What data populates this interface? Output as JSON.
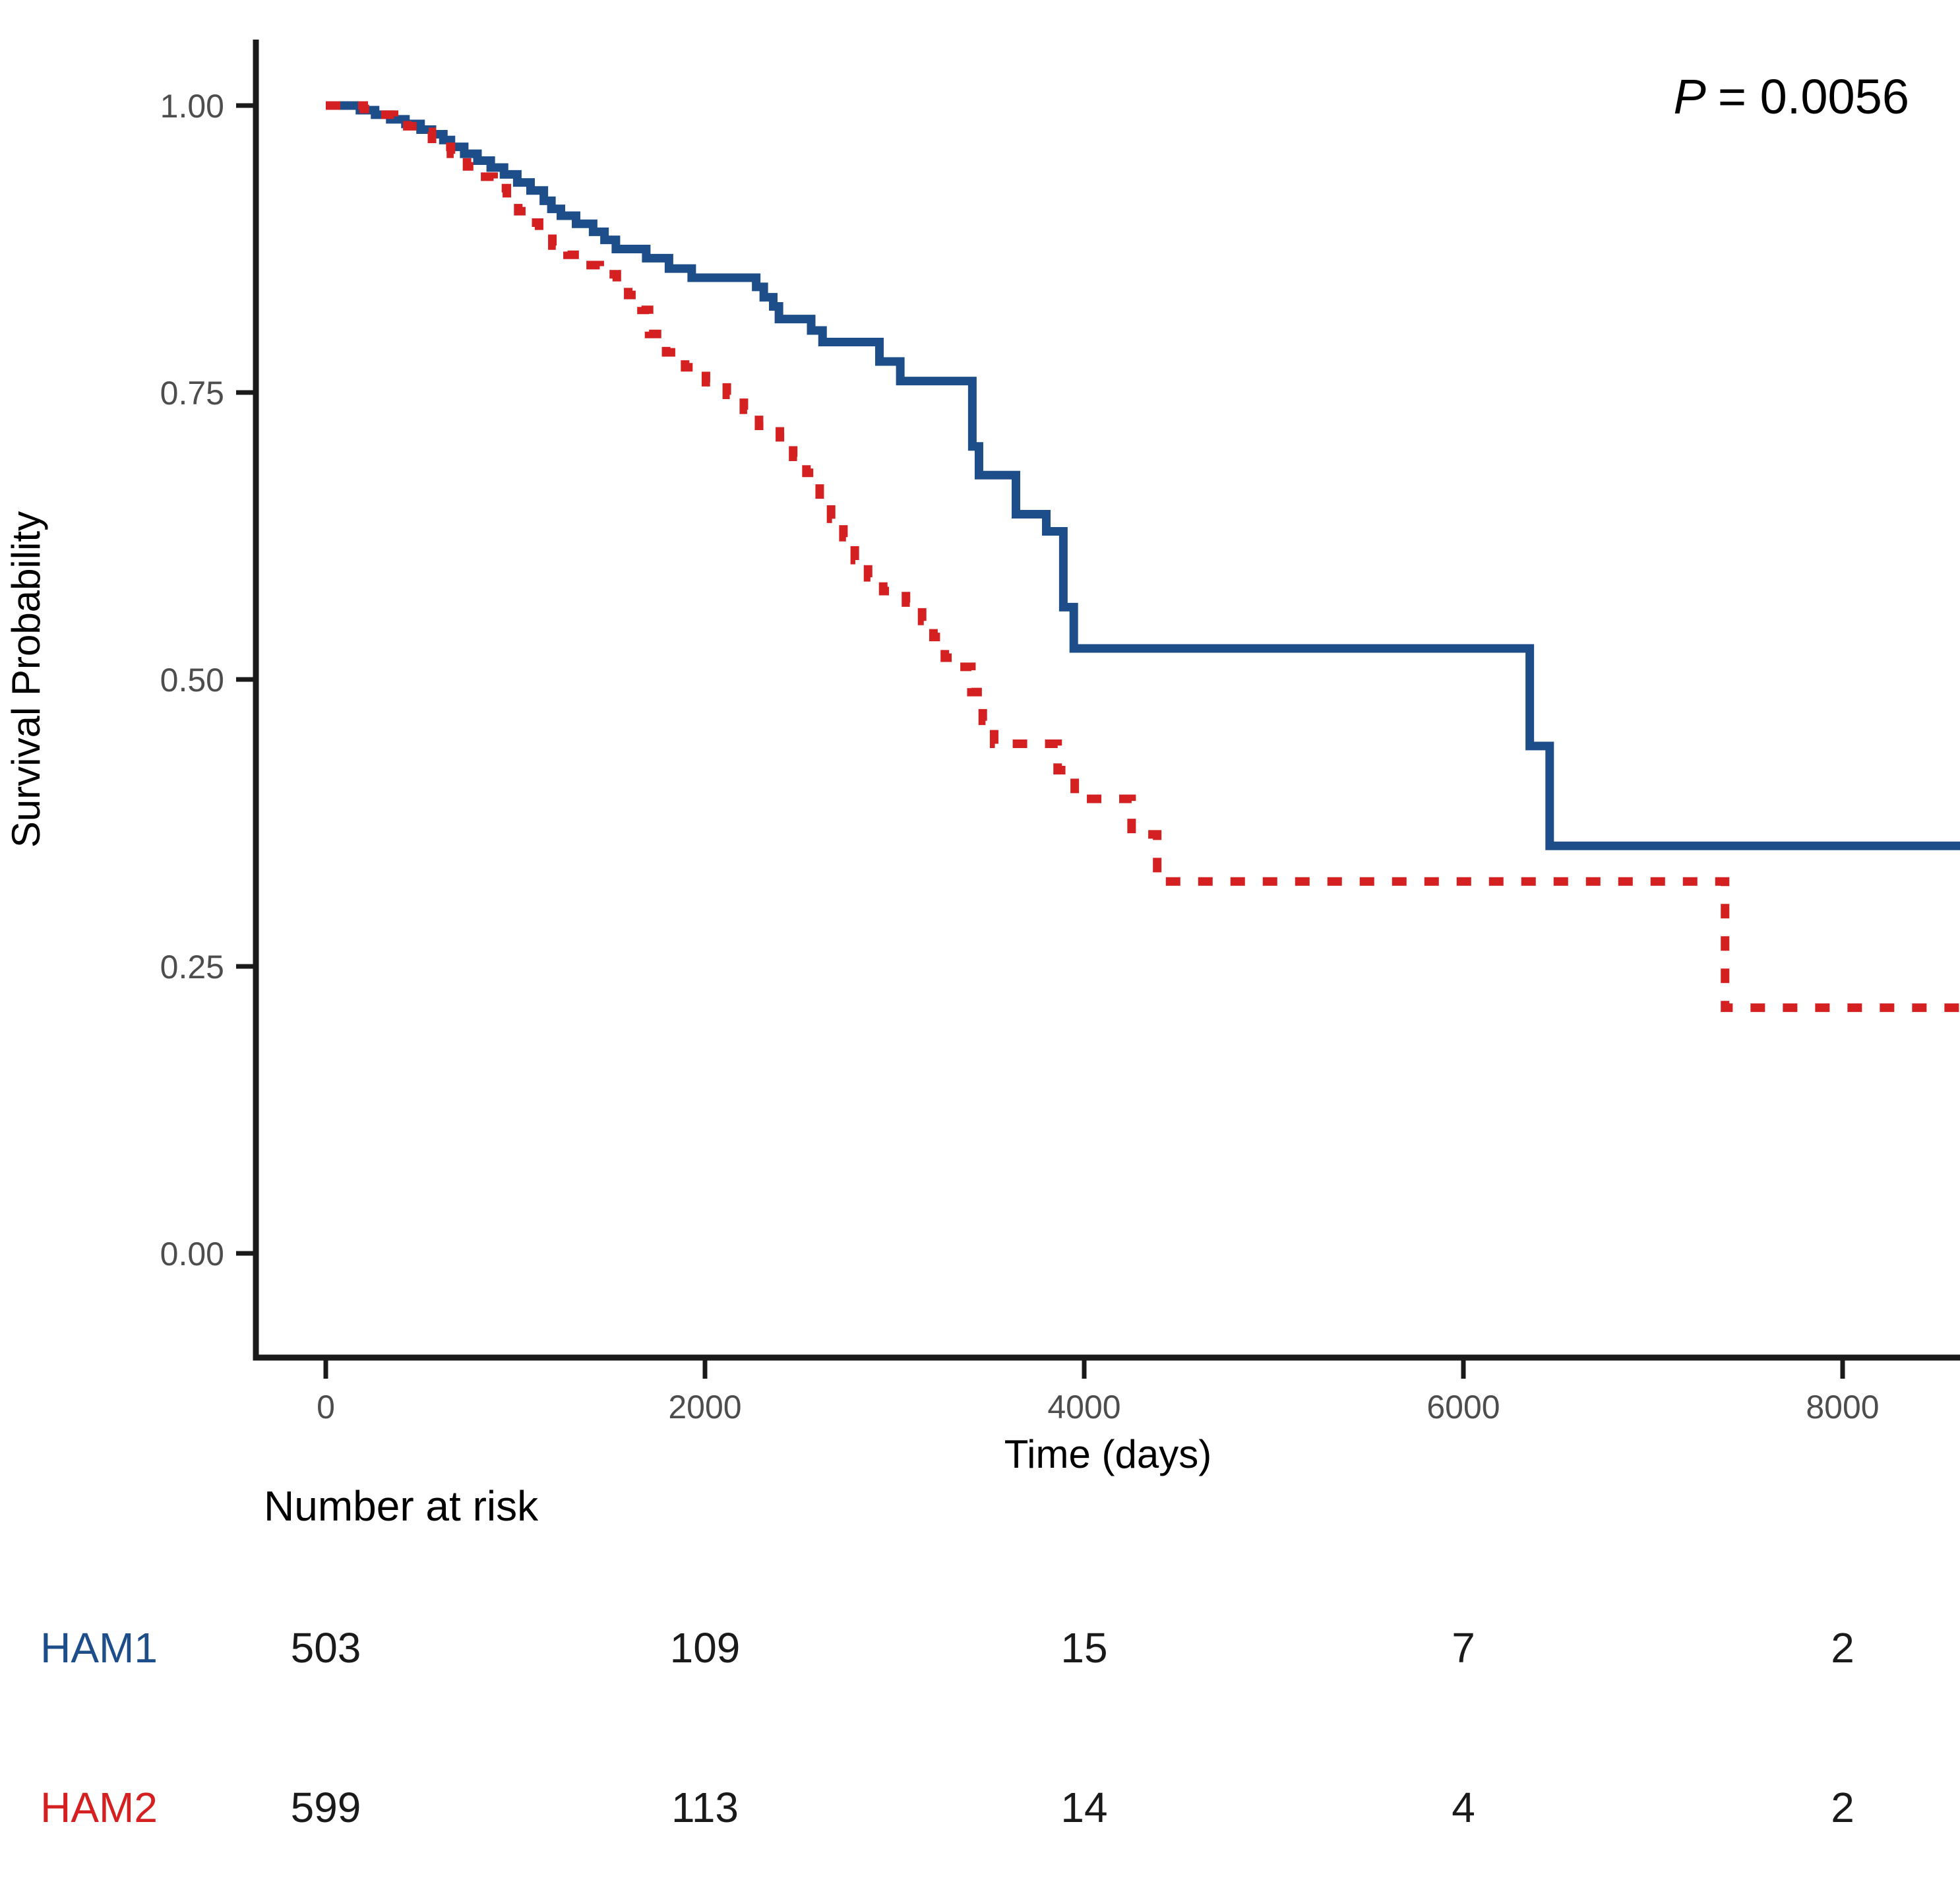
{
  "chart_data": {
    "type": "line",
    "subtype": "kaplan-meier-step",
    "title": "",
    "xlabel": "Time (days)",
    "ylabel": "Survival Probability",
    "xlim": [
      -350,
      8620
    ],
    "ylim": [
      -0.04,
      1.06
    ],
    "grid": "off",
    "legend_position": "none",
    "x_ticks": [
      0,
      2000,
      4000,
      6000,
      8000
    ],
    "y_ticks": [
      0,
      0.25,
      0.5,
      0.75,
      1
    ],
    "y_tick_labels": [
      "0.00",
      "0.25",
      "0.50",
      "0.75",
      "1.00"
    ],
    "annotation": {
      "p_label": "P",
      "p_rest": "= 0.0056"
    },
    "colors": {
      "ham1": "#1d4e89",
      "ham2": "#d42020",
      "axis": "#1a1a1a",
      "tick_text": "#4d4d4d"
    },
    "series": [
      {
        "name": "HAM1",
        "color": "#1d4e89",
        "style": "solid",
        "points": [
          [
            0,
            1.0
          ],
          [
            180,
            0.996
          ],
          [
            260,
            0.992
          ],
          [
            340,
            0.988
          ],
          [
            420,
            0.984
          ],
          [
            500,
            0.979
          ],
          [
            560,
            0.975
          ],
          [
            620,
            0.97
          ],
          [
            660,
            0.964
          ],
          [
            730,
            0.958
          ],
          [
            800,
            0.952
          ],
          [
            870,
            0.946
          ],
          [
            940,
            0.94
          ],
          [
            1010,
            0.933
          ],
          [
            1080,
            0.926
          ],
          [
            1150,
            0.917
          ],
          [
            1190,
            0.91
          ],
          [
            1240,
            0.904
          ],
          [
            1320,
            0.897
          ],
          [
            1410,
            0.89
          ],
          [
            1470,
            0.883
          ],
          [
            1530,
            0.875
          ],
          [
            1690,
            0.867
          ],
          [
            1810,
            0.858
          ],
          [
            1930,
            0.85
          ],
          [
            2270,
            0.842
          ],
          [
            2310,
            0.833
          ],
          [
            2360,
            0.825
          ],
          [
            2390,
            0.814
          ],
          [
            2560,
            0.804
          ],
          [
            2620,
            0.794
          ],
          [
            2920,
            0.777
          ],
          [
            3030,
            0.76
          ],
          [
            3410,
            0.703
          ],
          [
            3445,
            0.678
          ],
          [
            3640,
            0.644
          ],
          [
            3800,
            0.629
          ],
          [
            3890,
            0.563
          ],
          [
            3945,
            0.527
          ],
          [
            6350,
            0.442
          ],
          [
            6455,
            0.355
          ],
          [
            9000,
            0.355
          ]
        ]
      },
      {
        "name": "HAM2",
        "color": "#d42020",
        "style": "dashed",
        "points": [
          [
            0,
            1.0
          ],
          [
            200,
            0.997
          ],
          [
            290,
            0.992
          ],
          [
            360,
            0.987
          ],
          [
            430,
            0.982
          ],
          [
            500,
            0.977
          ],
          [
            560,
            0.971
          ],
          [
            625,
            0.964
          ],
          [
            660,
            0.958
          ],
          [
            745,
            0.947
          ],
          [
            815,
            0.938
          ],
          [
            885,
            0.928
          ],
          [
            955,
            0.918
          ],
          [
            1015,
            0.908
          ],
          [
            1065,
            0.898
          ],
          [
            1125,
            0.888
          ],
          [
            1195,
            0.878
          ],
          [
            1275,
            0.87
          ],
          [
            1345,
            0.861
          ],
          [
            1445,
            0.853
          ],
          [
            1535,
            0.844
          ],
          [
            1595,
            0.835
          ],
          [
            1665,
            0.822
          ],
          [
            1705,
            0.801
          ],
          [
            1795,
            0.785
          ],
          [
            1895,
            0.772
          ],
          [
            2005,
            0.759
          ],
          [
            2115,
            0.748
          ],
          [
            2205,
            0.735
          ],
          [
            2285,
            0.721
          ],
          [
            2395,
            0.711
          ],
          [
            2465,
            0.694
          ],
          [
            2535,
            0.68
          ],
          [
            2605,
            0.655
          ],
          [
            2665,
            0.64
          ],
          [
            2730,
            0.624
          ],
          [
            2790,
            0.604
          ],
          [
            2860,
            0.589
          ],
          [
            2940,
            0.577
          ],
          [
            3060,
            0.567
          ],
          [
            3145,
            0.551
          ],
          [
            3205,
            0.537
          ],
          [
            3265,
            0.519
          ],
          [
            3330,
            0.511
          ],
          [
            3405,
            0.489
          ],
          [
            3465,
            0.464
          ],
          [
            3525,
            0.444
          ],
          [
            3860,
            0.421
          ],
          [
            3950,
            0.396
          ],
          [
            4250,
            0.365
          ],
          [
            4385,
            0.324
          ],
          [
            7380,
            0.214
          ],
          [
            9000,
            0.214
          ]
        ]
      }
    ],
    "risk_table": {
      "title": "Number at risk",
      "times": [
        0,
        2000,
        4000,
        6000,
        8000
      ],
      "rows": [
        {
          "label": "HAM1",
          "color": "#1d4e89",
          "counts": [
            "503",
            "109",
            "15",
            "7",
            "2"
          ]
        },
        {
          "label": "HAM2",
          "color": "#d42020",
          "counts": [
            "599",
            "113",
            "14",
            "4",
            "2"
          ]
        }
      ]
    }
  }
}
